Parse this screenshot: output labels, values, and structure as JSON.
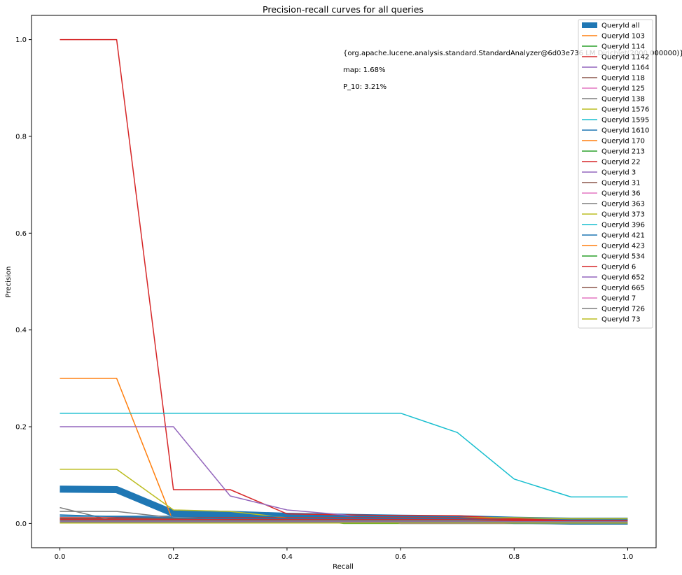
{
  "chart_data": {
    "type": "line",
    "title": "Precision-recall curves for all queries",
    "xlabel": "Recall",
    "ylabel": "Precision",
    "xlim": [
      -0.05,
      1.05
    ],
    "ylim": [
      -0.05,
      1.05
    ],
    "xticks": [
      0.0,
      0.2,
      0.4,
      0.6,
      0.8,
      1.0
    ],
    "xtick_labels": [
      "0.0",
      "0.2",
      "0.4",
      "0.6",
      "0.8",
      "1.0"
    ],
    "yticks": [
      0.0,
      0.2,
      0.4,
      0.6,
      0.8,
      1.0
    ],
    "ytick_labels": [
      "0.0",
      "0.2",
      "0.4",
      "0.6",
      "0.8",
      "1.0"
    ],
    "grid": false,
    "legend_position": "top-right",
    "annotations": [
      "{org.apache.lucene.analysis.standard.StandardAnalyzer@6d03e736 LM Dirichlet(2000.000000)}",
      "map: 1.68%",
      "P_10: 3.21%"
    ],
    "x": [
      0.0,
      0.1,
      0.2,
      0.3,
      0.4,
      0.5,
      0.6,
      0.7,
      0.8,
      0.9,
      1.0
    ],
    "series": [
      {
        "name": "QueryId all",
        "color": "#1f77b4",
        "thick": true,
        "values": [
          0.071,
          0.07,
          0.021,
          0.019,
          0.015,
          0.013,
          0.011,
          0.01,
          0.007,
          0.005,
          0.005
        ]
      },
      {
        "name": "QueryId 103",
        "color": "#ff7f0e",
        "values": [
          0.3,
          0.3,
          0.003,
          0.003,
          0.003,
          0.003,
          0.003,
          0.003,
          0.003,
          0.003,
          0.003
        ]
      },
      {
        "name": "QueryId 114",
        "color": "#2ca02c",
        "values": [
          0.012,
          0.012,
          0.012,
          0.012,
          0.012,
          0.0,
          0.0,
          0.0,
          0.0,
          0.0,
          0.0
        ]
      },
      {
        "name": "QueryId 1142",
        "color": "#d62728",
        "values": [
          1.0,
          1.0,
          0.07,
          0.07,
          0.02,
          0.018,
          0.016,
          0.016,
          0.01,
          0.006,
          0.006
        ]
      },
      {
        "name": "QueryId 1164",
        "color": "#9467bd",
        "values": [
          0.2,
          0.2,
          0.2,
          0.057,
          0.028,
          0.018,
          0.0,
          0.0,
          0.0,
          0.0,
          0.0
        ]
      },
      {
        "name": "QueryId 118",
        "color": "#8c564b",
        "values": [
          0.01,
          0.01,
          0.01,
          0.01,
          0.01,
          0.01,
          0.01,
          0.01,
          0.005,
          0.003,
          0.003
        ]
      },
      {
        "name": "QueryId 125",
        "color": "#e377c2",
        "values": [
          0.008,
          0.008,
          0.008,
          0.008,
          0.008,
          0.006,
          0.006,
          0.006,
          0.004,
          0.004,
          0.004
        ]
      },
      {
        "name": "QueryId 138",
        "color": "#7f7f7f",
        "values": [
          0.033,
          0.004,
          0.004,
          0.004,
          0.004,
          0.004,
          0.004,
          0.004,
          0.004,
          0.004,
          0.004
        ]
      },
      {
        "name": "QueryId 1576",
        "color": "#bcbd22",
        "values": [
          0.112,
          0.112,
          0.028,
          0.025,
          0.012,
          0.012,
          0.012,
          0.012,
          0.012,
          0.01,
          0.01
        ]
      },
      {
        "name": "QueryId 1595",
        "color": "#17becf",
        "values": [
          0.228,
          0.228,
          0.228,
          0.228,
          0.228,
          0.228,
          0.228,
          0.188,
          0.092,
          0.055,
          0.055
        ]
      },
      {
        "name": "QueryId 1610",
        "color": "#1f77b4",
        "values": [
          0.015,
          0.015,
          0.015,
          0.015,
          0.015,
          0.015,
          0.01,
          0.005,
          0.0,
          0.0,
          0.0
        ]
      },
      {
        "name": "QueryId 170",
        "color": "#ff7f0e",
        "values": [
          0.006,
          0.006,
          0.006,
          0.006,
          0.006,
          0.006,
          0.006,
          0.006,
          0.006,
          0.006,
          0.006
        ]
      },
      {
        "name": "QueryId 213",
        "color": "#2ca02c",
        "values": [
          0.004,
          0.004,
          0.004,
          0.004,
          0.004,
          0.004,
          0.004,
          0.004,
          0.004,
          0.004,
          0.004
        ]
      },
      {
        "name": "QueryId 22",
        "color": "#d62728",
        "values": [
          0.012,
          0.012,
          0.012,
          0.012,
          0.012,
          0.012,
          0.012,
          0.012,
          0.008,
          0.005,
          0.005
        ]
      },
      {
        "name": "QueryId 3",
        "color": "#9467bd",
        "values": [
          0.008,
          0.008,
          0.008,
          0.008,
          0.008,
          0.008,
          0.008,
          0.008,
          0.005,
          0.003,
          0.003
        ]
      },
      {
        "name": "QueryId 31",
        "color": "#8c564b",
        "values": [
          0.006,
          0.006,
          0.006,
          0.006,
          0.006,
          0.006,
          0.006,
          0.006,
          0.006,
          0.006,
          0.006
        ]
      },
      {
        "name": "QueryId 36",
        "color": "#e377c2",
        "values": [
          0.005,
          0.005,
          0.005,
          0.005,
          0.005,
          0.005,
          0.005,
          0.005,
          0.005,
          0.005,
          0.005
        ]
      },
      {
        "name": "QueryId 363",
        "color": "#7f7f7f",
        "values": [
          0.025,
          0.025,
          0.012,
          0.01,
          0.008,
          0.008,
          0.008,
          0.008,
          0.006,
          0.006,
          0.006
        ]
      },
      {
        "name": "QueryId 373",
        "color": "#bcbd22",
        "values": [
          0.003,
          0.003,
          0.003,
          0.003,
          0.003,
          0.003,
          0.003,
          0.003,
          0.003,
          0.003,
          0.003
        ]
      },
      {
        "name": "QueryId 396",
        "color": "#17becf",
        "values": [
          0.005,
          0.005,
          0.005,
          0.005,
          0.005,
          0.005,
          0.005,
          0.005,
          0.005,
          0.005,
          0.005
        ]
      },
      {
        "name": "QueryId 421",
        "color": "#1f77b4",
        "values": [
          0.018,
          0.014,
          0.012,
          0.01,
          0.01,
          0.01,
          0.01,
          0.01,
          0.005,
          0.004,
          0.004
        ]
      },
      {
        "name": "QueryId 423",
        "color": "#ff7f0e",
        "values": [
          0.004,
          0.004,
          0.004,
          0.004,
          0.004,
          0.004,
          0.004,
          0.004,
          0.004,
          0.004,
          0.004
        ]
      },
      {
        "name": "QueryId 534",
        "color": "#2ca02c",
        "values": [
          0.002,
          0.002,
          0.002,
          0.002,
          0.002,
          0.002,
          0.002,
          0.002,
          0.002,
          0.002,
          0.002
        ]
      },
      {
        "name": "QueryId 6",
        "color": "#d62728",
        "values": [
          0.008,
          0.008,
          0.008,
          0.008,
          0.008,
          0.008,
          0.008,
          0.008,
          0.006,
          0.006,
          0.006
        ]
      },
      {
        "name": "QueryId 652",
        "color": "#9467bd",
        "values": [
          0.004,
          0.004,
          0.004,
          0.004,
          0.004,
          0.004,
          0.004,
          0.004,
          0.004,
          0.004,
          0.004
        ]
      },
      {
        "name": "QueryId 665",
        "color": "#8c564b",
        "values": [
          0.003,
          0.003,
          0.003,
          0.003,
          0.003,
          0.003,
          0.003,
          0.003,
          0.003,
          0.003,
          0.003
        ]
      },
      {
        "name": "QueryId 7",
        "color": "#e377c2",
        "values": [
          0.002,
          0.002,
          0.002,
          0.002,
          0.002,
          0.002,
          0.002,
          0.002,
          0.002,
          0.002,
          0.002
        ]
      },
      {
        "name": "QueryId 726",
        "color": "#7f7f7f",
        "values": [
          0.003,
          0.003,
          0.003,
          0.003,
          0.003,
          0.003,
          0.003,
          0.003,
          0.003,
          0.003,
          0.003
        ]
      },
      {
        "name": "QueryId 73",
        "color": "#bcbd22",
        "values": [
          0.001,
          0.001,
          0.001,
          0.001,
          0.001,
          0.001,
          0.001,
          0.001,
          0.001,
          0.001,
          0.001
        ]
      }
    ]
  }
}
